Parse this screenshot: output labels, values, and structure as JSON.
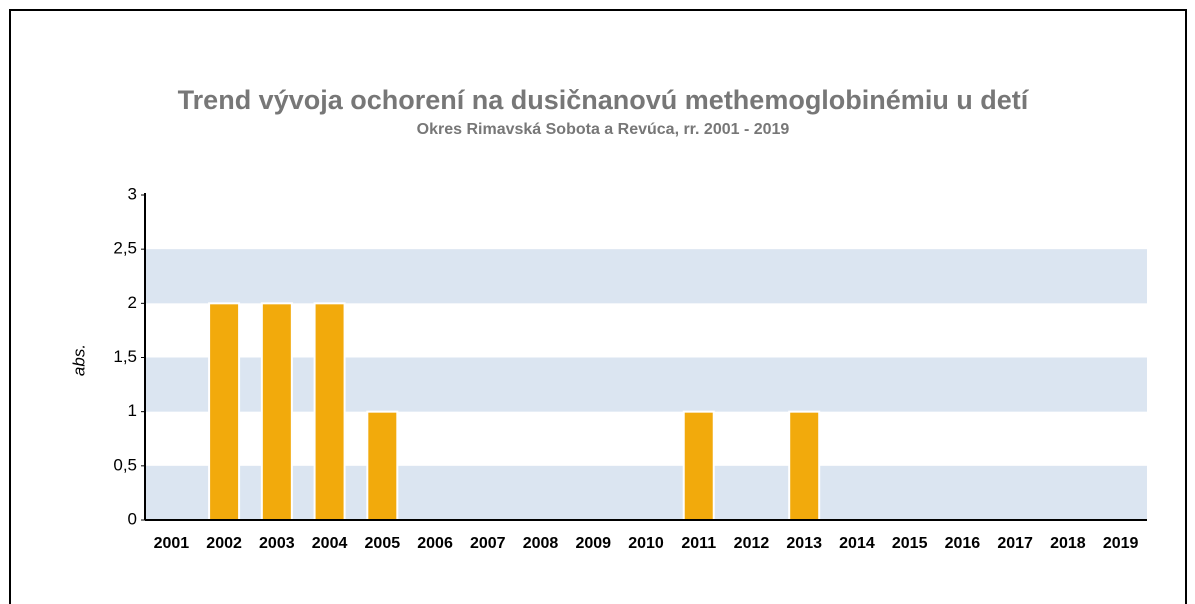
{
  "chart_data": {
    "type": "bar",
    "title": "Trend vývoja ochorení na dusičnanovú methemoglobinémiu u detí",
    "subtitle": "Okres Rimavská Sobota a Revúca, rr. 2001 - 2019",
    "y_label": "abs.",
    "categories": [
      "2001",
      "2002",
      "2003",
      "2004",
      "2005",
      "2006",
      "2007",
      "2008",
      "2009",
      "2010",
      "2011",
      "2012",
      "2013",
      "2014",
      "2015",
      "2016",
      "2017",
      "2018",
      "2019"
    ],
    "values": [
      0,
      2,
      2,
      2,
      1,
      0,
      0,
      0,
      0,
      0,
      1,
      0,
      1,
      0,
      0,
      0,
      0,
      0,
      0
    ],
    "color": "#f2aa0c",
    "band_color": "#dbe5f1",
    "ylim": [
      0,
      3
    ],
    "yticks": [
      0,
      {
        "value": 0.5,
        "label": "0,5"
      },
      1,
      {
        "value": 1.5,
        "label": "1,5"
      },
      2,
      {
        "value": 2.5,
        "label": "2,5"
      },
      3
    ]
  }
}
